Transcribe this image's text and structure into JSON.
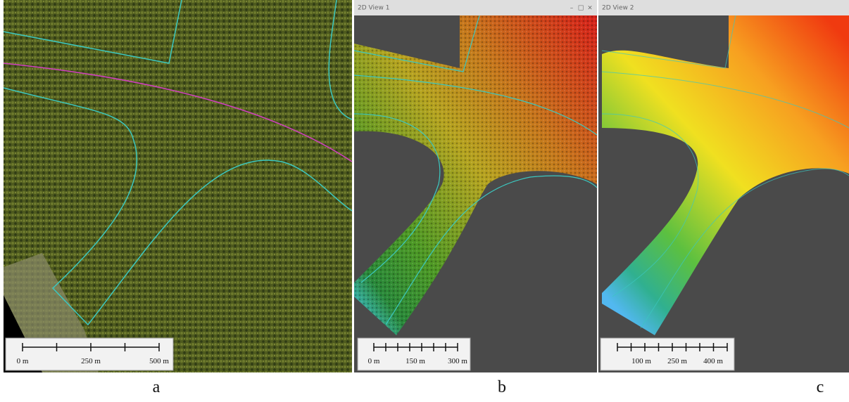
{
  "panels": [
    {
      "caption": "a",
      "scale_labels": [
        "0 m",
        "250 m",
        "500 m"
      ]
    },
    {
      "caption": "b",
      "window_title": "2D View 1",
      "window_buttons": [
        "–",
        "□",
        "×"
      ],
      "scale_labels": [
        "0 m",
        "150 m",
        "300 m"
      ]
    },
    {
      "caption": "c",
      "window_title": "2D View 2",
      "scale_labels": [
        "100 m",
        "250 m",
        "400 m"
      ]
    }
  ]
}
